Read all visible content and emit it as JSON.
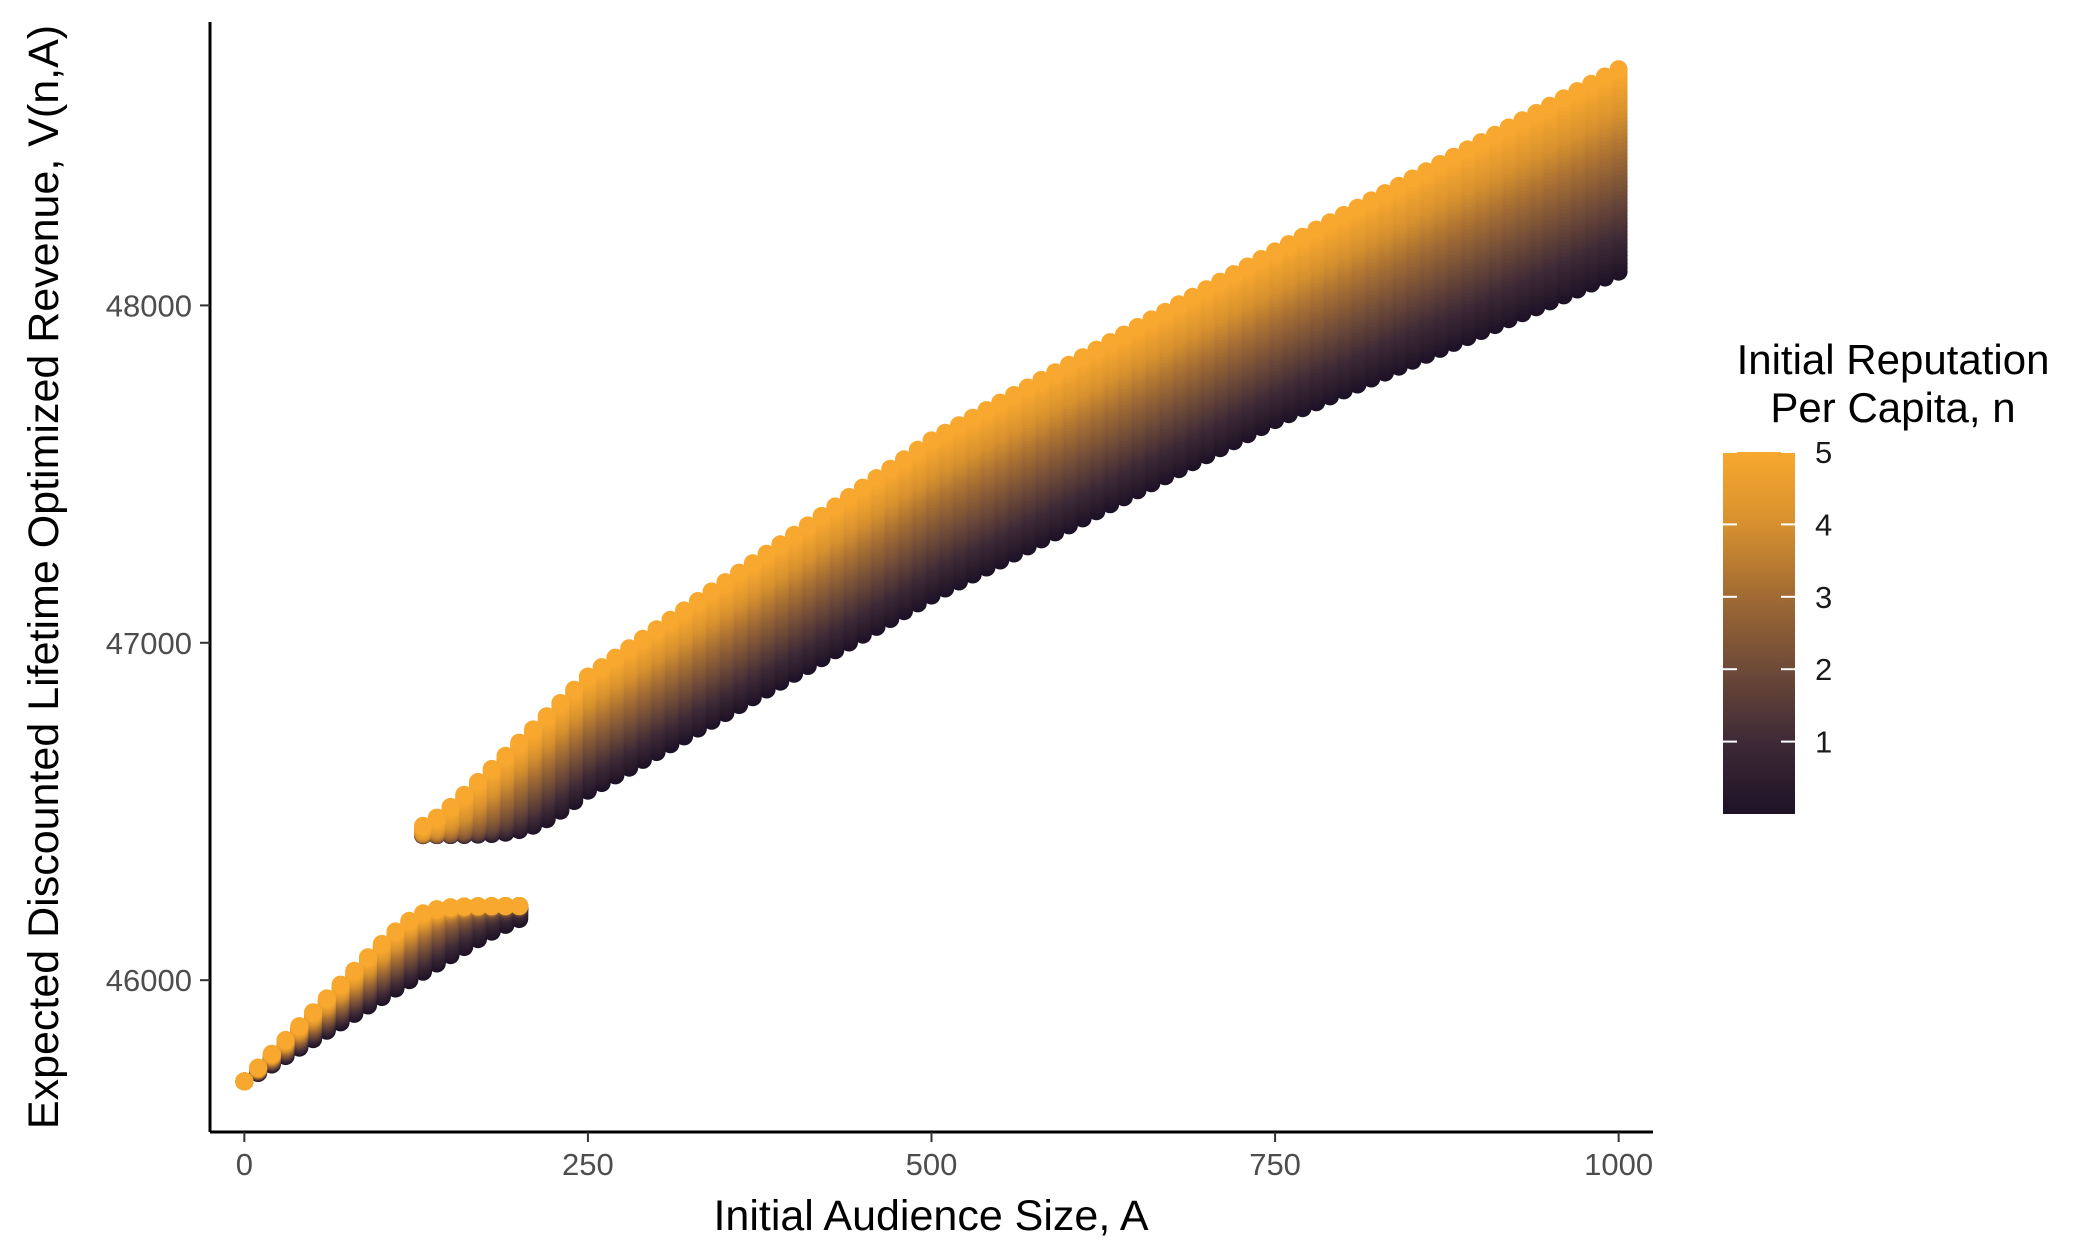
{
  "chart_data": {
    "type": "scatter",
    "xlabel": "Initial Audience Size, A",
    "ylabel": "Expected Discounted Lifetime Optimized Revenue, V(n,A)",
    "xlim": [
      -25,
      1025
    ],
    "ylim": [
      45550,
      48840
    ],
    "x_ticks": [
      0,
      250,
      500,
      750,
      1000
    ],
    "y_ticks": [
      46000,
      47000,
      48000
    ],
    "x_tick_labels": [
      "0",
      "250",
      "500",
      "750",
      "1000"
    ],
    "y_tick_labels": [
      "46000",
      "47000",
      "48000"
    ],
    "grid": false,
    "legend": {
      "title_lines": [
        "Initial Reputation",
        "Per Capita, n"
      ],
      "placement": "right",
      "type": "colorbar",
      "range": [
        0,
        5
      ],
      "ticks": [
        1,
        2,
        3,
        4,
        5
      ],
      "tick_labels": [
        "1",
        "2",
        "3",
        "4",
        "5"
      ],
      "colors": [
        "#1e1226",
        "#3e2a36",
        "#6e4a38",
        "#a06a34",
        "#d6902e",
        "#f8a82e"
      ]
    },
    "color_variable": "n",
    "x_step": 10,
    "n_step": 0.1,
    "low_regime": {
      "x_range": [
        0,
        200
      ],
      "at_x0": 45700,
      "slope_top_per_unit": 4.1,
      "slope_bottom_per_unit": 2.5,
      "cap": 46220,
      "threshold_k": 40
    },
    "high_regime": {
      "x_range": [
        130,
        1000
      ],
      "floor": 46430,
      "top_points": [
        [
          130,
          46430
        ],
        [
          250,
          46900
        ],
        [
          500,
          47600
        ],
        [
          750,
          48160
        ],
        [
          1000,
          48700
        ]
      ],
      "bottom_points": [
        [
          210,
          46430
        ],
        [
          250,
          46560
        ],
        [
          500,
          47140
        ],
        [
          750,
          47660
        ],
        [
          1000,
          48100
        ]
      ],
      "threshold_k": 40
    }
  }
}
